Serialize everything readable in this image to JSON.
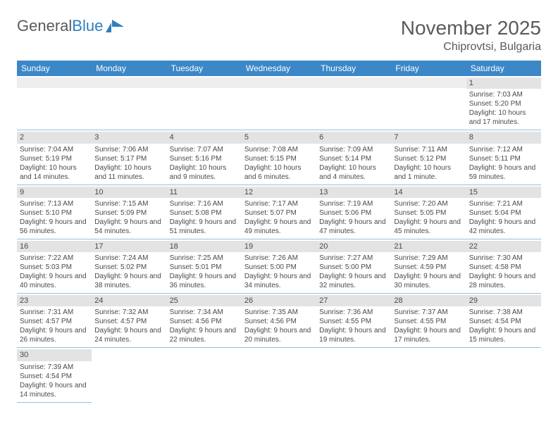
{
  "logo": {
    "text1": "General",
    "text2": "Blue"
  },
  "header": {
    "month": "November 2025",
    "location": "Chiprovtsi, Bulgaria"
  },
  "colors": {
    "header_bg": "#3b87c8",
    "header_text": "#ffffff",
    "daynum_bg": "#e3e3e3",
    "blank_daynum_bg": "#eeeeee",
    "cell_border": "#9bbdd8",
    "text": "#4a4a4a",
    "logo_gray": "#5a5a5a",
    "logo_blue": "#2f7fc0"
  },
  "weekdays": [
    "Sunday",
    "Monday",
    "Tuesday",
    "Wednesday",
    "Thursday",
    "Friday",
    "Saturday"
  ],
  "weeks": [
    [
      {
        "blank": true
      },
      {
        "blank": true
      },
      {
        "blank": true
      },
      {
        "blank": true
      },
      {
        "blank": true
      },
      {
        "blank": true
      },
      {
        "day": "1",
        "sunrise": "Sunrise: 7:03 AM",
        "sunset": "Sunset: 5:20 PM",
        "daylight": "Daylight: 10 hours and 17 minutes."
      }
    ],
    [
      {
        "day": "2",
        "sunrise": "Sunrise: 7:04 AM",
        "sunset": "Sunset: 5:19 PM",
        "daylight": "Daylight: 10 hours and 14 minutes."
      },
      {
        "day": "3",
        "sunrise": "Sunrise: 7:06 AM",
        "sunset": "Sunset: 5:17 PM",
        "daylight": "Daylight: 10 hours and 11 minutes."
      },
      {
        "day": "4",
        "sunrise": "Sunrise: 7:07 AM",
        "sunset": "Sunset: 5:16 PM",
        "daylight": "Daylight: 10 hours and 9 minutes."
      },
      {
        "day": "5",
        "sunrise": "Sunrise: 7:08 AM",
        "sunset": "Sunset: 5:15 PM",
        "daylight": "Daylight: 10 hours and 6 minutes."
      },
      {
        "day": "6",
        "sunrise": "Sunrise: 7:09 AM",
        "sunset": "Sunset: 5:14 PM",
        "daylight": "Daylight: 10 hours and 4 minutes."
      },
      {
        "day": "7",
        "sunrise": "Sunrise: 7:11 AM",
        "sunset": "Sunset: 5:12 PM",
        "daylight": "Daylight: 10 hours and 1 minute."
      },
      {
        "day": "8",
        "sunrise": "Sunrise: 7:12 AM",
        "sunset": "Sunset: 5:11 PM",
        "daylight": "Daylight: 9 hours and 59 minutes."
      }
    ],
    [
      {
        "day": "9",
        "sunrise": "Sunrise: 7:13 AM",
        "sunset": "Sunset: 5:10 PM",
        "daylight": "Daylight: 9 hours and 56 minutes."
      },
      {
        "day": "10",
        "sunrise": "Sunrise: 7:15 AM",
        "sunset": "Sunset: 5:09 PM",
        "daylight": "Daylight: 9 hours and 54 minutes."
      },
      {
        "day": "11",
        "sunrise": "Sunrise: 7:16 AM",
        "sunset": "Sunset: 5:08 PM",
        "daylight": "Daylight: 9 hours and 51 minutes."
      },
      {
        "day": "12",
        "sunrise": "Sunrise: 7:17 AM",
        "sunset": "Sunset: 5:07 PM",
        "daylight": "Daylight: 9 hours and 49 minutes."
      },
      {
        "day": "13",
        "sunrise": "Sunrise: 7:19 AM",
        "sunset": "Sunset: 5:06 PM",
        "daylight": "Daylight: 9 hours and 47 minutes."
      },
      {
        "day": "14",
        "sunrise": "Sunrise: 7:20 AM",
        "sunset": "Sunset: 5:05 PM",
        "daylight": "Daylight: 9 hours and 45 minutes."
      },
      {
        "day": "15",
        "sunrise": "Sunrise: 7:21 AM",
        "sunset": "Sunset: 5:04 PM",
        "daylight": "Daylight: 9 hours and 42 minutes."
      }
    ],
    [
      {
        "day": "16",
        "sunrise": "Sunrise: 7:22 AM",
        "sunset": "Sunset: 5:03 PM",
        "daylight": "Daylight: 9 hours and 40 minutes."
      },
      {
        "day": "17",
        "sunrise": "Sunrise: 7:24 AM",
        "sunset": "Sunset: 5:02 PM",
        "daylight": "Daylight: 9 hours and 38 minutes."
      },
      {
        "day": "18",
        "sunrise": "Sunrise: 7:25 AM",
        "sunset": "Sunset: 5:01 PM",
        "daylight": "Daylight: 9 hours and 36 minutes."
      },
      {
        "day": "19",
        "sunrise": "Sunrise: 7:26 AM",
        "sunset": "Sunset: 5:00 PM",
        "daylight": "Daylight: 9 hours and 34 minutes."
      },
      {
        "day": "20",
        "sunrise": "Sunrise: 7:27 AM",
        "sunset": "Sunset: 5:00 PM",
        "daylight": "Daylight: 9 hours and 32 minutes."
      },
      {
        "day": "21",
        "sunrise": "Sunrise: 7:29 AM",
        "sunset": "Sunset: 4:59 PM",
        "daylight": "Daylight: 9 hours and 30 minutes."
      },
      {
        "day": "22",
        "sunrise": "Sunrise: 7:30 AM",
        "sunset": "Sunset: 4:58 PM",
        "daylight": "Daylight: 9 hours and 28 minutes."
      }
    ],
    [
      {
        "day": "23",
        "sunrise": "Sunrise: 7:31 AM",
        "sunset": "Sunset: 4:57 PM",
        "daylight": "Daylight: 9 hours and 26 minutes."
      },
      {
        "day": "24",
        "sunrise": "Sunrise: 7:32 AM",
        "sunset": "Sunset: 4:57 PM",
        "daylight": "Daylight: 9 hours and 24 minutes."
      },
      {
        "day": "25",
        "sunrise": "Sunrise: 7:34 AM",
        "sunset": "Sunset: 4:56 PM",
        "daylight": "Daylight: 9 hours and 22 minutes."
      },
      {
        "day": "26",
        "sunrise": "Sunrise: 7:35 AM",
        "sunset": "Sunset: 4:56 PM",
        "daylight": "Daylight: 9 hours and 20 minutes."
      },
      {
        "day": "27",
        "sunrise": "Sunrise: 7:36 AM",
        "sunset": "Sunset: 4:55 PM",
        "daylight": "Daylight: 9 hours and 19 minutes."
      },
      {
        "day": "28",
        "sunrise": "Sunrise: 7:37 AM",
        "sunset": "Sunset: 4:55 PM",
        "daylight": "Daylight: 9 hours and 17 minutes."
      },
      {
        "day": "29",
        "sunrise": "Sunrise: 7:38 AM",
        "sunset": "Sunset: 4:54 PM",
        "daylight": "Daylight: 9 hours and 15 minutes."
      }
    ],
    [
      {
        "day": "30",
        "sunrise": "Sunrise: 7:39 AM",
        "sunset": "Sunset: 4:54 PM",
        "daylight": "Daylight: 9 hours and 14 minutes."
      },
      {
        "empty": true
      },
      {
        "empty": true
      },
      {
        "empty": true
      },
      {
        "empty": true
      },
      {
        "empty": true
      },
      {
        "empty": true
      }
    ]
  ]
}
